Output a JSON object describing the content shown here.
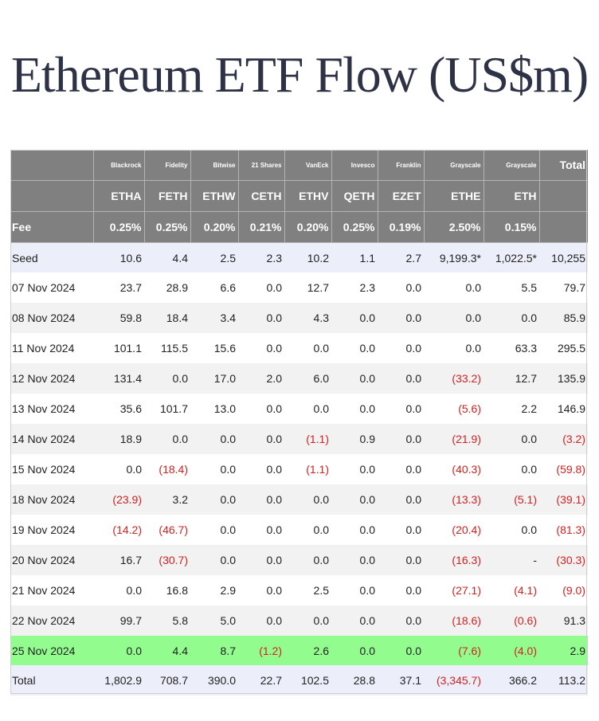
{
  "title": "Ethereum ETF Flow (US$m)",
  "issuers": [
    "",
    "Blackrock",
    "Fidelity",
    "Bitwise",
    "21 Shares",
    "VanEck",
    "Invesco",
    "Franklin",
    "Grayscale",
    "Grayscale",
    "Total"
  ],
  "tickers": [
    "",
    "ETHA",
    "FETH",
    "ETHW",
    "CETH",
    "ETHV",
    "QETH",
    "EZET",
    "ETHE",
    "ETH",
    ""
  ],
  "fees": [
    "Fee",
    "0.25%",
    "0.25%",
    "0.20%",
    "0.21%",
    "0.20%",
    "0.25%",
    "0.19%",
    "2.50%",
    "0.15%",
    ""
  ],
  "rows": [
    [
      "Seed",
      "10.6",
      "4.4",
      "2.5",
      "2.3",
      "10.2",
      "1.1",
      "2.7",
      "9,199.3*",
      "1,022.5*",
      "10,255"
    ],
    [
      "07 Nov 2024",
      "23.7",
      "28.9",
      "6.6",
      "0.0",
      "12.7",
      "2.3",
      "0.0",
      "0.0",
      "5.5",
      "79.7"
    ],
    [
      "08 Nov 2024",
      "59.8",
      "18.4",
      "3.4",
      "0.0",
      "4.3",
      "0.0",
      "0.0",
      "0.0",
      "0.0",
      "85.9"
    ],
    [
      "11 Nov 2024",
      "101.1",
      "115.5",
      "15.6",
      "0.0",
      "0.0",
      "0.0",
      "0.0",
      "0.0",
      "63.3",
      "295.5"
    ],
    [
      "12 Nov 2024",
      "131.4",
      "0.0",
      "17.0",
      "2.0",
      "6.0",
      "0.0",
      "0.0",
      "(33.2)",
      "12.7",
      "135.9"
    ],
    [
      "13 Nov 2024",
      "35.6",
      "101.7",
      "13.0",
      "0.0",
      "0.0",
      "0.0",
      "0.0",
      "(5.6)",
      "2.2",
      "146.9"
    ],
    [
      "14 Nov 2024",
      "18.9",
      "0.0",
      "0.0",
      "0.0",
      "(1.1)",
      "0.9",
      "0.0",
      "(21.9)",
      "0.0",
      "(3.2)"
    ],
    [
      "15 Nov 2024",
      "0.0",
      "(18.4)",
      "0.0",
      "0.0",
      "(1.1)",
      "0.0",
      "0.0",
      "(40.3)",
      "0.0",
      "(59.8)"
    ],
    [
      "18 Nov 2024",
      "(23.9)",
      "3.2",
      "0.0",
      "0.0",
      "0.0",
      "0.0",
      "0.0",
      "(13.3)",
      "(5.1)",
      "(39.1)"
    ],
    [
      "19 Nov 2024",
      "(14.2)",
      "(46.7)",
      "0.0",
      "0.0",
      "0.0",
      "0.0",
      "0.0",
      "(20.4)",
      "0.0",
      "(81.3)"
    ],
    [
      "20 Nov 2024",
      "16.7",
      "(30.7)",
      "0.0",
      "0.0",
      "0.0",
      "0.0",
      "0.0",
      "(16.3)",
      "-",
      "(30.3)"
    ],
    [
      "21 Nov 2024",
      "0.0",
      "16.8",
      "2.9",
      "0.0",
      "2.5",
      "0.0",
      "0.0",
      "(27.1)",
      "(4.1)",
      "(9.0)"
    ],
    [
      "22 Nov 2024",
      "99.7",
      "5.8",
      "5.0",
      "0.0",
      "0.0",
      "0.0",
      "0.0",
      "(18.6)",
      "(0.6)",
      "91.3"
    ],
    [
      "25 Nov 2024",
      "0.0",
      "4.4",
      "8.7",
      "(1.2)",
      "2.6",
      "0.0",
      "0.0",
      "(7.6)",
      "(4.0)",
      "2.9"
    ]
  ],
  "totals": [
    "Total",
    "1,802.9",
    "708.7",
    "390.0",
    "22.7",
    "102.5",
    "28.8",
    "37.1",
    "(3,345.7)",
    "366.2",
    "113.2"
  ],
  "colors": {
    "header_bg": "#808080",
    "seed_bg": "#eceff9",
    "stripe_bg": "#f2f2f2",
    "highlight_bg": "#92fc8f",
    "negative": "#d42020",
    "title": "#2e3247"
  }
}
